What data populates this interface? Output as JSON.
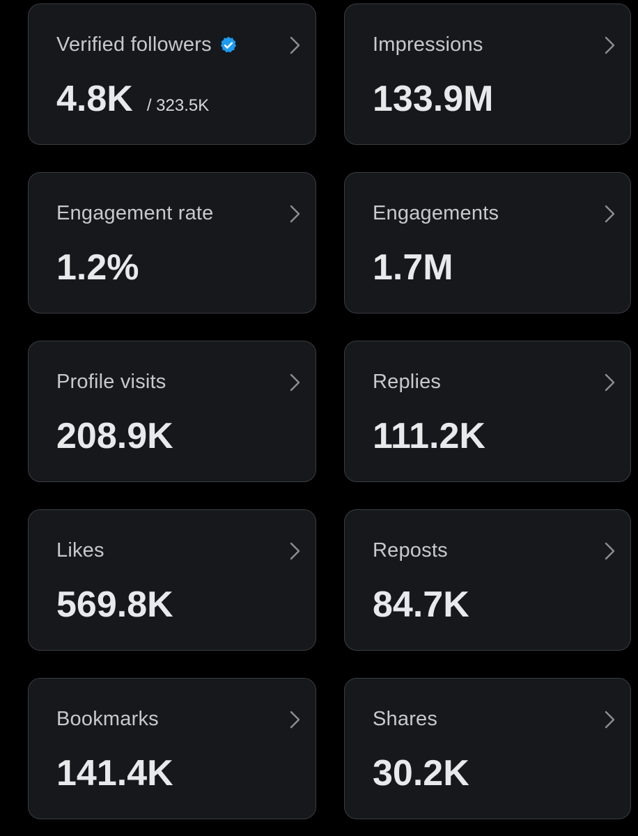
{
  "colors": {
    "background": "#000000",
    "card_background": "#16181c",
    "card_border": "#3a3d41",
    "label": "#c7c9cc",
    "value": "#e7e9ea",
    "verified_badge": "#1d9bf0"
  },
  "cards": [
    {
      "label": "Verified followers",
      "value": "4.8K",
      "sub": "/ 323.5K",
      "icon": "verified-badge-icon"
    },
    {
      "label": "Impressions",
      "value": "133.9M"
    },
    {
      "label": "Engagement rate",
      "value": "1.2%"
    },
    {
      "label": "Engagements",
      "value": "1.7M"
    },
    {
      "label": "Profile visits",
      "value": "208.9K"
    },
    {
      "label": "Replies",
      "value": "111.2K"
    },
    {
      "label": "Likes",
      "value": "569.8K"
    },
    {
      "label": "Reposts",
      "value": "84.7K"
    },
    {
      "label": "Bookmarks",
      "value": "141.4K"
    },
    {
      "label": "Shares",
      "value": "30.2K"
    }
  ]
}
